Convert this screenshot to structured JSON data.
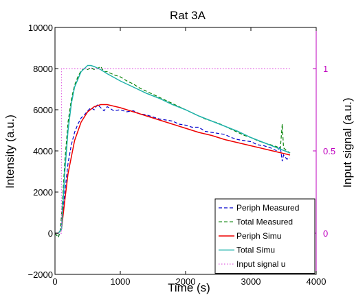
{
  "chart_data": {
    "type": "line",
    "title": "Rat 3A",
    "xlabel": "Time (s)",
    "ylabel": "Intensity (a.u.)",
    "ylabel_right": "Input signal (a.u.)",
    "xlim": [
      0,
      4000
    ],
    "ylim": [
      -2000,
      10000
    ],
    "ylim_right": [
      -0.25,
      1.25
    ],
    "xticks": [
      0,
      1000,
      2000,
      3000,
      4000
    ],
    "yticks": [
      -2000,
      0,
      2000,
      4000,
      6000,
      8000,
      10000
    ],
    "yticks_right": [
      0,
      0.5,
      1
    ],
    "ytick_labels": [
      "−2000",
      "0",
      "2000",
      "4000",
      "6000",
      "8000",
      "10000"
    ],
    "xtick_labels": [
      "0",
      "1000",
      "2000",
      "3000",
      "4000"
    ],
    "ytick_labels_right": [
      "0",
      "0.5",
      "1"
    ],
    "grid": false,
    "legend_position": "bottom-right",
    "colors": {
      "periph_measured": "#0000cc",
      "total_measured": "#007f00",
      "periph_simu": "#ee0000",
      "total_simu": "#20b2aa",
      "input_signal": "#e060e0",
      "right_axis": "#bf00bf"
    },
    "series": [
      {
        "name": "Periph Measured",
        "axis": "left",
        "style": "dashed",
        "x": [
          0,
          50,
          80,
          110,
          150,
          200,
          250,
          300,
          350,
          400,
          450,
          500,
          550,
          600,
          650,
          700,
          750,
          800,
          850,
          900,
          1000,
          1100,
          1200,
          1300,
          1400,
          1500,
          1600,
          1700,
          1800,
          1900,
          2000,
          2100,
          2200,
          2300,
          2400,
          2500,
          2600,
          2700,
          2800,
          2900,
          3000,
          3100,
          3200,
          3300,
          3400,
          3450,
          3480,
          3500,
          3550,
          3600
        ],
        "y": [
          0,
          -200,
          100,
          700,
          2000,
          3400,
          4300,
          4900,
          5300,
          5600,
          5750,
          5950,
          6100,
          6000,
          6250,
          6100,
          5950,
          6150,
          6050,
          5950,
          6000,
          5900,
          5950,
          5800,
          5750,
          5650,
          5550,
          5500,
          5450,
          5300,
          5250,
          5150,
          5150,
          4950,
          4900,
          4850,
          4800,
          4650,
          4550,
          4500,
          4450,
          4300,
          4250,
          4150,
          4000,
          4200,
          3500,
          3800,
          3600,
          3650
        ]
      },
      {
        "name": "Total Measured",
        "axis": "left",
        "style": "dashed",
        "x": [
          0,
          50,
          80,
          110,
          150,
          200,
          250,
          300,
          350,
          400,
          450,
          500,
          550,
          600,
          650,
          700,
          750,
          800,
          900,
          1000,
          1100,
          1200,
          1300,
          1400,
          1500,
          1600,
          1700,
          1800,
          1900,
          2000,
          2100,
          2200,
          2300,
          2400,
          2500,
          2600,
          2700,
          2800,
          2900,
          3000,
          3100,
          3200,
          3300,
          3400,
          3450,
          3480,
          3500,
          3550,
          3600
        ],
        "y": [
          0,
          -200,
          100,
          1300,
          3500,
          5400,
          6500,
          7200,
          7600,
          7900,
          8000,
          7950,
          8050,
          7950,
          8000,
          8100,
          7850,
          7850,
          7700,
          7600,
          7400,
          7250,
          7050,
          6900,
          6750,
          6600,
          6450,
          6300,
          6150,
          6000,
          5850,
          5700,
          5550,
          5450,
          5350,
          5200,
          5050,
          4900,
          4750,
          4650,
          4500,
          4400,
          4300,
          4200,
          4100,
          5300,
          4150,
          4000,
          3900
        ]
      },
      {
        "name": "Periph Simu",
        "axis": "left",
        "style": "solid",
        "x": [
          0,
          50,
          100,
          150,
          200,
          300,
          400,
          500,
          600,
          700,
          800,
          1000,
          1200,
          1400,
          1600,
          1800,
          2000,
          2200,
          2400,
          2600,
          2800,
          3000,
          3200,
          3400,
          3600
        ],
        "y": [
          0,
          0,
          200,
          1600,
          2900,
          4500,
          5400,
          5900,
          6150,
          6250,
          6250,
          6100,
          5900,
          5700,
          5500,
          5300,
          5100,
          4900,
          4750,
          4550,
          4400,
          4250,
          4100,
          3950,
          3800
        ]
      },
      {
        "name": "Total Simu",
        "axis": "left",
        "style": "solid",
        "x": [
          0,
          50,
          100,
          150,
          200,
          250,
          300,
          400,
          500,
          550,
          600,
          700,
          800,
          1000,
          1200,
          1400,
          1600,
          1800,
          2000,
          2200,
          2400,
          2600,
          2800,
          3000,
          3200,
          3400,
          3600
        ],
        "y": [
          0,
          0,
          200,
          3000,
          5000,
          6300,
          7100,
          7850,
          8150,
          8150,
          8100,
          7950,
          7750,
          7400,
          7100,
          6800,
          6550,
          6250,
          6000,
          5700,
          5450,
          5200,
          4950,
          4650,
          4400,
          4150,
          3900
        ]
      },
      {
        "name": "Input signal u",
        "axis": "right",
        "style": "dotted",
        "x": [
          0,
          99,
          100,
          3600
        ],
        "y": [
          0,
          0,
          1,
          1
        ]
      }
    ]
  }
}
